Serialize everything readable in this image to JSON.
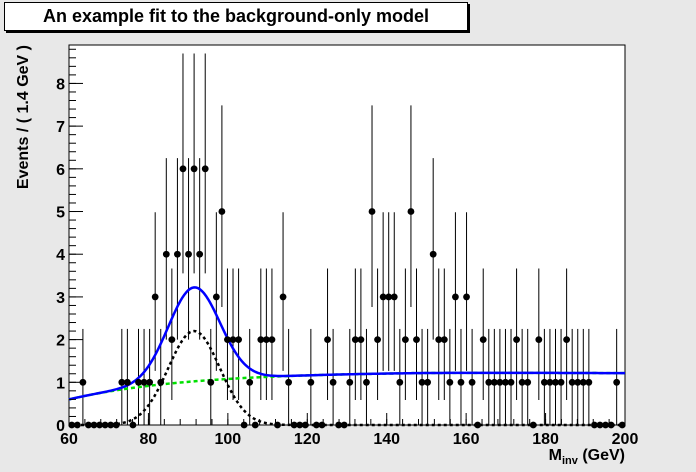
{
  "chart_data": {
    "type": "scatter",
    "title": "An example fit to the background-only model",
    "xlabel": "M",
    "xlabel_sub": "inv",
    "xlabel_unit": " (GeV)",
    "ylabel": "Events / ( 1.4 GeV )",
    "xlim": [
      60,
      200
    ],
    "ylim": [
      0,
      8.9
    ],
    "x_ticks": [
      60,
      80,
      100,
      120,
      140,
      160,
      180,
      200
    ],
    "y_ticks": [
      0,
      1,
      2,
      3,
      4,
      5,
      6,
      7,
      8
    ],
    "grid": false,
    "points": {
      "x": [
        60.7,
        62.1,
        63.5,
        64.9,
        66.3,
        67.7,
        69.1,
        70.5,
        71.9,
        73.3,
        74.7,
        76.1,
        77.5,
        78.9,
        80.3,
        81.7,
        83.1,
        84.5,
        85.9,
        87.3,
        88.7,
        90.1,
        91.5,
        92.9,
        94.3,
        95.7,
        97.1,
        98.5,
        99.9,
        101.3,
        102.7,
        104.1,
        105.5,
        106.9,
        108.3,
        109.7,
        111.1,
        112.5,
        113.9,
        115.3,
        116.7,
        118.1,
        119.5,
        120.9,
        122.3,
        123.7,
        125.1,
        126.5,
        127.9,
        129.3,
        130.7,
        132.1,
        133.5,
        134.9,
        136.3,
        137.7,
        139.1,
        140.5,
        141.9,
        143.3,
        144.7,
        146.1,
        147.5,
        148.9,
        150.3,
        151.7,
        153.1,
        154.5,
        155.9,
        157.3,
        158.7,
        160.1,
        161.5,
        162.9,
        164.3,
        165.7,
        167.1,
        168.5,
        169.9,
        171.3,
        172.7,
        174.1,
        175.5,
        176.9,
        178.3,
        179.7,
        181.1,
        182.5,
        183.9,
        185.3,
        186.7,
        188.1,
        189.5,
        190.9,
        192.3,
        193.7,
        195.1,
        196.5,
        197.9,
        199.3
      ],
      "y": [
        0,
        0,
        1,
        0,
        0,
        0,
        0,
        0,
        0,
        1,
        1,
        0,
        1,
        1,
        1,
        3,
        1,
        4,
        2,
        4,
        6,
        4,
        6,
        4,
        6,
        1,
        3,
        5,
        2,
        2,
        2,
        0,
        1,
        0,
        2,
        2,
        2,
        0,
        3,
        1,
        0,
        0,
        0,
        1,
        0,
        0,
        2,
        1,
        0,
        0,
        1,
        2,
        2,
        1,
        5,
        2,
        3,
        3,
        3,
        1,
        2,
        5,
        2,
        1,
        1,
        4,
        2,
        2,
        1,
        3,
        1,
        3,
        1,
        0,
        2,
        1,
        1,
        1,
        1,
        1,
        2,
        1,
        1,
        0,
        2,
        1,
        1,
        1,
        1,
        2,
        1,
        1,
        1,
        1,
        0,
        0,
        0,
        0,
        1,
        0
      ]
    },
    "series": [
      {
        "name": "",
        "color": "#0000ff",
        "style": "solid"
      },
      {
        "name": "",
        "color": "#000000",
        "style": "dotted"
      },
      {
        "name": "",
        "color": "#00e000",
        "style": "dashed"
      }
    ],
    "model": {
      "signal_mean": 91.5,
      "signal_sigma": 6.5,
      "signal_peak": 2.2,
      "bkg_at_60": 0.6,
      "bkg_slope": 0.012,
      "bkg_plateau": 1.25,
      "bkg_knee": 105
    }
  }
}
